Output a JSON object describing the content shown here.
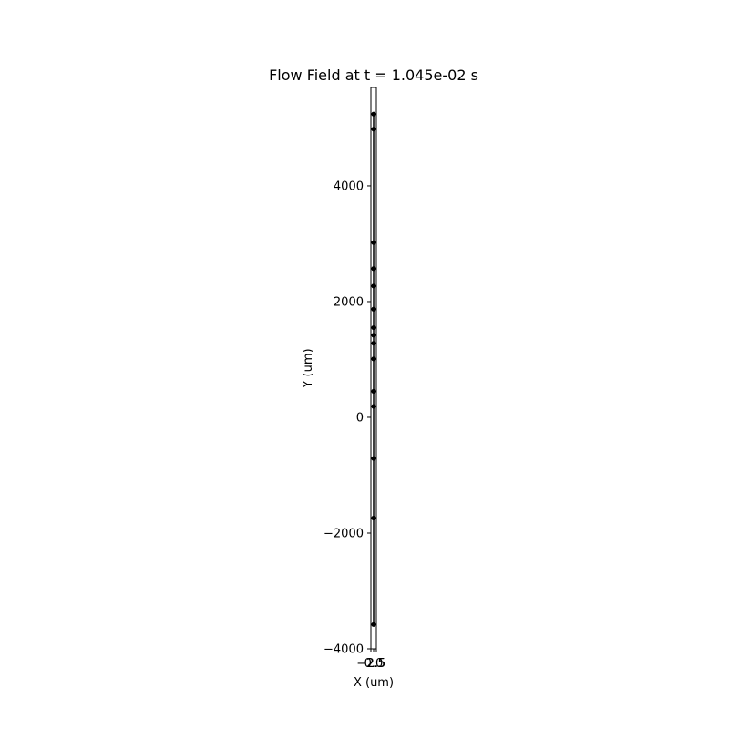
{
  "chart_data": {
    "type": "scatter",
    "title": "Flow Field at t = 1.045e-02 s",
    "xlabel": "X (um)",
    "ylabel": "Y (um)",
    "xlim": [
      -2.5,
      2.5
    ],
    "ylim": [
      -4000,
      5700
    ],
    "x_ticks": [
      -2.5,
      0,
      2.5
    ],
    "x_tick_labels": [
      "−2.5",
      "0.0",
      "2.5"
    ],
    "y_ticks": [
      -4000,
      -2000,
      0,
      2000,
      4000
    ],
    "y_tick_labels": [
      "−4000",
      "−2000",
      "0",
      "2000",
      "4000"
    ],
    "grid": false,
    "points": [
      {
        "x": 0,
        "y": 5240
      },
      {
        "x": 0,
        "y": 4980
      },
      {
        "x": 0,
        "y": 3020
      },
      {
        "x": 0,
        "y": 2570
      },
      {
        "x": 0,
        "y": 2270
      },
      {
        "x": 0,
        "y": 1870
      },
      {
        "x": 0,
        "y": 1550
      },
      {
        "x": 0,
        "y": 1420
      },
      {
        "x": 0,
        "y": 1280
      },
      {
        "x": 0,
        "y": 1010
      },
      {
        "x": 0,
        "y": 450
      },
      {
        "x": 0,
        "y": 190
      },
      {
        "x": 0,
        "y": -710
      },
      {
        "x": 0,
        "y": -1740
      },
      {
        "x": 0,
        "y": -3580
      }
    ]
  }
}
